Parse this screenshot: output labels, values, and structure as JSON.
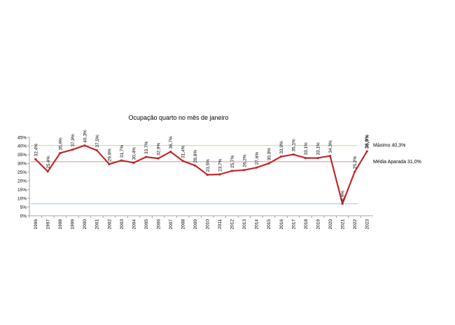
{
  "chart_data": {
    "type": "line",
    "title": "Ocupação quarto no mês de janeiro",
    "xlabel": "",
    "ylabel": "",
    "ylim": [
      0,
      45
    ],
    "y_ticks": [
      "0%",
      "5%",
      "10%",
      "15%",
      "20%",
      "25%",
      "30%",
      "35%",
      "40%",
      "45%"
    ],
    "grid": false,
    "categories": [
      "1996",
      "1997",
      "1998",
      "1999",
      "2000",
      "2001",
      "2002",
      "2003",
      "2004",
      "2005",
      "2006",
      "2007",
      "2008",
      "2009",
      "2010",
      "2011",
      "2012",
      "2013",
      "2014",
      "2015",
      "2016",
      "2017",
      "2018",
      "2019",
      "2020",
      "2021",
      "2022",
      "2023"
    ],
    "series": [
      {
        "name": "",
        "color": "#c0292b",
        "values": [
          32.4,
          25.4,
          35.9,
          37.9,
          40.3,
          37.5,
          29.6,
          31.7,
          30.4,
          33.7,
          32.9,
          36.7,
          31.4,
          28.8,
          23.5,
          23.7,
          25.7,
          26.2,
          27.6,
          30.0,
          33.9,
          35.1,
          33.1,
          33.1,
          34.3,
          6.9,
          25.2,
          36.9
        ],
        "labels": [
          "32,4%",
          "25,4%",
          "35,9%",
          "37,9%",
          "40,3%",
          "37,5%",
          "29,6%",
          "31,7%",
          "30,4%",
          "33,7%",
          "32,9%",
          "36,7%",
          "31,4%",
          "28,8%",
          "23,5%",
          "23,7%",
          "25,7%",
          "26,2%",
          "27,6%",
          "30,0%",
          "33,9%",
          "35,1%",
          "33,1%",
          "33,1%",
          "34,3%",
          "6,9%",
          "25,2%",
          "36,9%"
        ]
      }
    ],
    "reference_lines": [
      {
        "value": 40.3,
        "label": "Máximo 40,3%",
        "color": "#c9d49a"
      },
      {
        "value": 31.0,
        "label": "Média Aparada 31,0%",
        "color": "#e88a86"
      },
      {
        "value": 6.9,
        "label": "",
        "color": "#9ec3dc"
      }
    ]
  }
}
